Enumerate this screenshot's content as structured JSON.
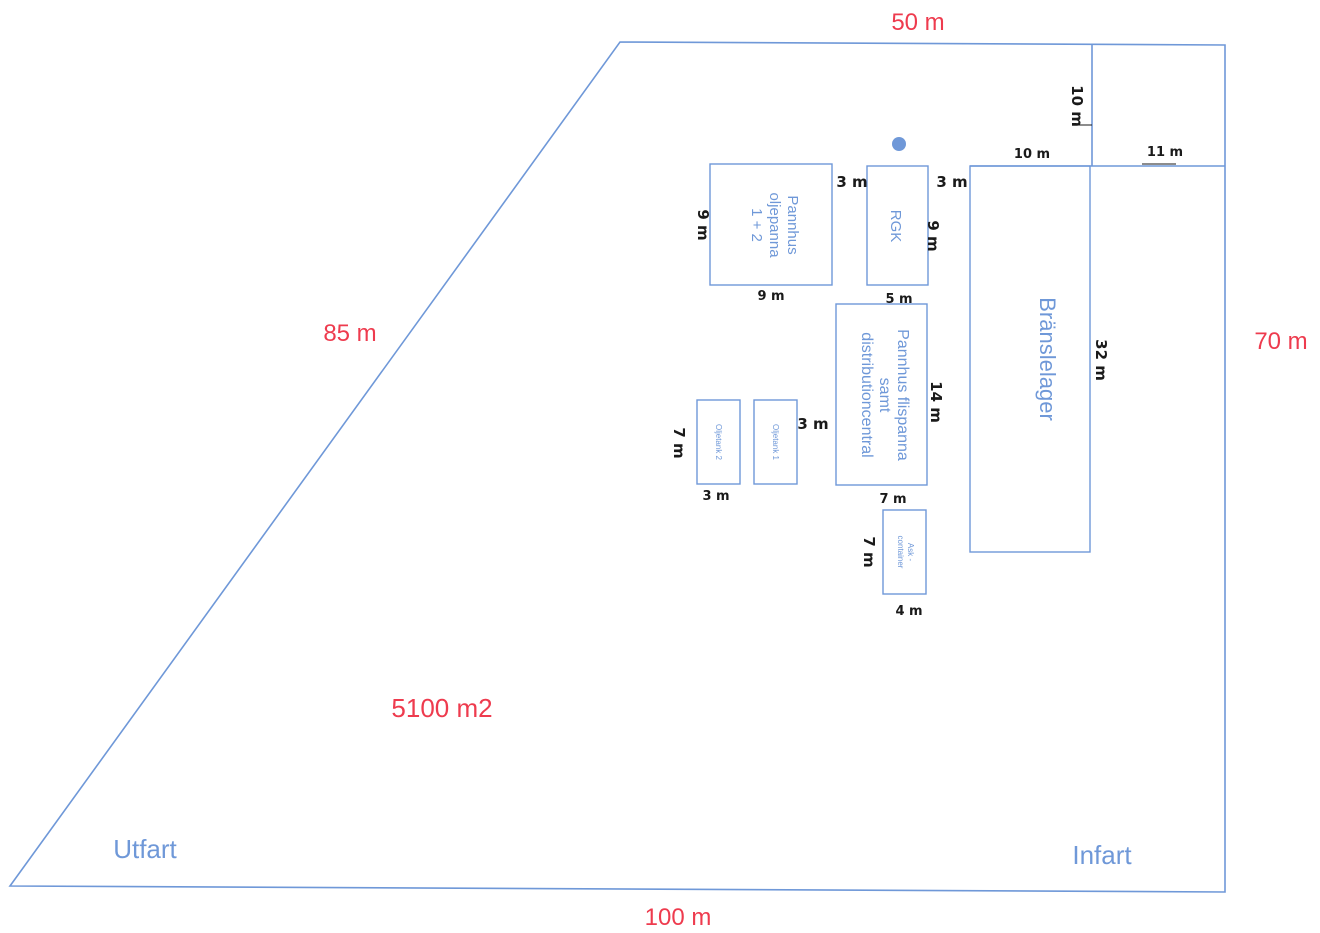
{
  "site": {
    "top_length": "50 m",
    "left_length": "85 m",
    "right_length": "70 m",
    "bottom_length": "100 m",
    "area": "5100 m2",
    "exit_label": "Utfart",
    "entry_label": "Infart"
  },
  "buildings": {
    "oil_boiler_house": {
      "label_line1": "Pannhus",
      "label_line2": "oljepanna",
      "label_line3": "1 + 2",
      "width": "9 m",
      "height": "9 m"
    },
    "rgk": {
      "label": "RGK",
      "width": "5 m",
      "height": "9 m"
    },
    "chip_boiler_house": {
      "label_line1": "Pannhus flispanna",
      "label_line2": "samt",
      "label_line3": "distributioncentral",
      "width": "7 m",
      "height": "14 m"
    },
    "oil_tank_1": {
      "label": "Oljetank 1"
    },
    "oil_tank_2": {
      "label": "Oljetank 2",
      "width": "3 m",
      "height": "7 m"
    },
    "ash_container": {
      "label_line1": "Ask -",
      "label_line2": "container",
      "width": "4 m",
      "height": "7 m"
    },
    "fuel_storage": {
      "label": "Bränslelager",
      "width": "10 m",
      "height": "32 m"
    }
  },
  "dimensions": {
    "gap_oil_rgk": "3 m",
    "gap_rgk_fuel": "3 m",
    "gap_tank_chip": "3 m",
    "fuel_to_top": "10 m",
    "fuel_to_right": "11 m"
  },
  "colors": {
    "boundary": "#6f98d8",
    "site_text": "#ee3b4e",
    "dimension_text": "#1a1a1a"
  }
}
